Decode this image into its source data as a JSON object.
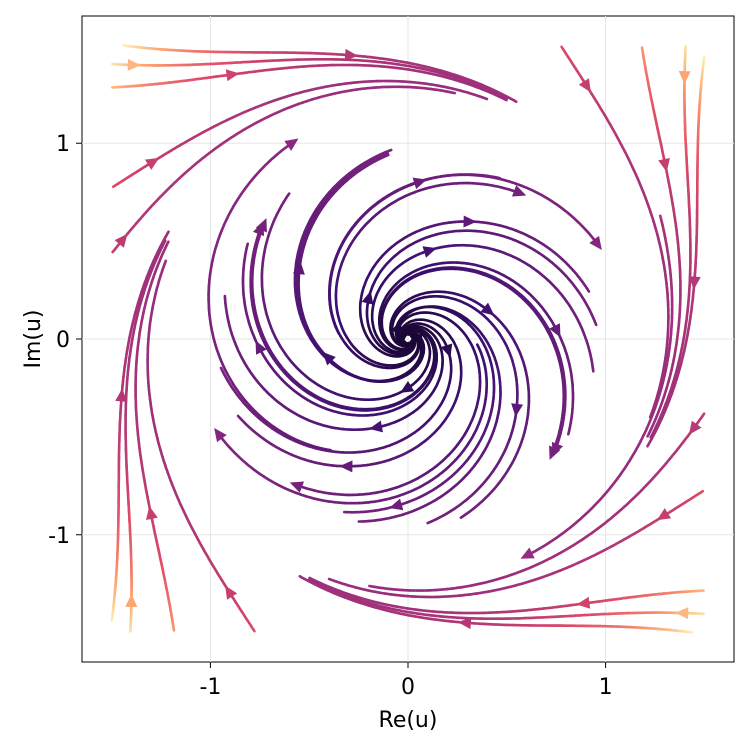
{
  "chart_data": {
    "type": "streamplot",
    "xlabel": "Re(u)",
    "ylabel": "Im(u)",
    "xlim": [
      -1.65,
      1.65
    ],
    "ylim": [
      -1.65,
      1.65
    ],
    "field_domain": [
      -1.5,
      1.5
    ],
    "x_ticks": [
      {
        "value": -1,
        "label": "-1"
      },
      {
        "value": 0,
        "label": "0"
      },
      {
        "value": 1,
        "label": "1"
      }
    ],
    "y_ticks": [
      {
        "value": -1,
        "label": "-1"
      },
      {
        "value": 0,
        "label": "0"
      },
      {
        "value": 1,
        "label": "1"
      }
    ],
    "grid": true,
    "colormap": "magma",
    "field": {
      "description": "du/dt = u(1-|u|^2)^... rotating spiral field",
      "rotation": -2.8,
      "radial": 1.0
    },
    "seeds": [
      [
        0.05,
        0.0
      ],
      [
        -0.05,
        0.05
      ],
      [
        0.2,
        -0.05
      ],
      [
        -0.2,
        0.2
      ],
      [
        0.0,
        -0.25
      ],
      [
        0.4,
        0.15
      ],
      [
        -0.4,
        -0.1
      ],
      [
        0.1,
        0.45
      ],
      [
        -0.15,
        -0.45
      ],
      [
        0.55,
        -0.35
      ],
      [
        -0.55,
        0.35
      ],
      [
        0.3,
        0.6
      ],
      [
        -0.3,
        -0.65
      ],
      [
        0.75,
        0.05
      ],
      [
        -0.75,
        -0.05
      ],
      [
        0.05,
        0.8
      ],
      [
        -0.05,
        -0.85
      ],
      [
        0.7,
        -0.65
      ],
      [
        -0.7,
        0.65
      ],
      [
        0.95,
        0.45
      ],
      [
        -0.95,
        -0.45
      ],
      [
        0.45,
        -0.95
      ],
      [
        -0.45,
        0.95
      ],
      [
        1.15,
        -0.1
      ],
      [
        -1.15,
        0.1
      ],
      [
        0.0,
        1.2
      ],
      [
        0.0,
        -1.25
      ],
      [
        1.3,
        0.9
      ],
      [
        -1.3,
        -0.9
      ],
      [
        1.3,
        -0.9
      ],
      [
        -1.3,
        0.9
      ],
      [
        0.9,
        1.3
      ],
      [
        -0.9,
        -1.3
      ],
      [
        0.9,
        -1.35
      ],
      [
        -0.9,
        1.35
      ],
      [
        1.4,
        1.35
      ],
      [
        -1.4,
        -1.35
      ],
      [
        1.4,
        -1.4
      ],
      [
        -1.4,
        1.4
      ],
      [
        1.45,
        0.3
      ],
      [
        -1.45,
        -0.3
      ],
      [
        0.3,
        -1.45
      ],
      [
        -0.3,
        1.45
      ],
      [
        1.45,
        -0.45
      ],
      [
        -1.45,
        0.5
      ]
    ]
  }
}
